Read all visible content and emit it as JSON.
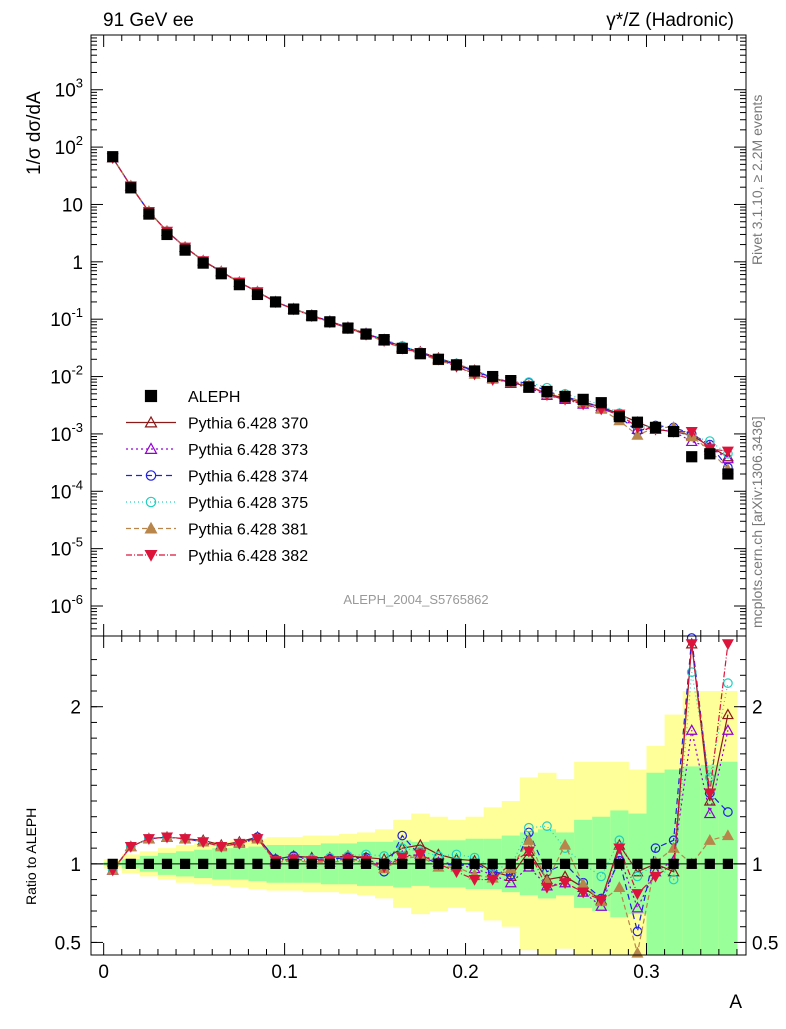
{
  "header": {
    "left": "91 GeV ee",
    "right": "γ*/Z (Hadronic)"
  },
  "side_text": {
    "top": "Rivet 3.1.10, ≥ 2.2M events",
    "bottom": "mcplots.cern.ch [arXiv:1306.3436]"
  },
  "analysis_label": "ALEPH_2004_S5765862",
  "colors": {
    "ALEPH": "#000000",
    "p370": "#8b1a1a",
    "p373": "#9400d3",
    "p374": "#2020e0",
    "p375": "#20d0c0",
    "p381": "#b8864b",
    "p382": "#dc143c",
    "band_yellow": "#ffff99",
    "band_green": "#99ff99"
  },
  "chart_data": [
    {
      "type": "scatter",
      "ylabel": "1/σ  dσ/dA",
      "yscale": "log",
      "ylim": [
        3e-07,
        9000
      ],
      "xlim": [
        -0.007,
        0.355
      ],
      "y_tick_labels": [
        "10^-6",
        "10^-5",
        "10^-4",
        "10^-3",
        "10^-2",
        "10^-1",
        "1",
        "10",
        "10^2",
        "10^3"
      ],
      "legend_position": "lower-left",
      "x": [
        0.005,
        0.015,
        0.025,
        0.035,
        0.045,
        0.055,
        0.065,
        0.075,
        0.085,
        0.095,
        0.105,
        0.115,
        0.125,
        0.135,
        0.145,
        0.155,
        0.165,
        0.175,
        0.185,
        0.195,
        0.205,
        0.215,
        0.225,
        0.235,
        0.245,
        0.255,
        0.265,
        0.275,
        0.285,
        0.295,
        0.305,
        0.315,
        0.325,
        0.335,
        0.345
      ],
      "data_series": {
        "name": "ALEPH",
        "values": [
          68,
          19.5,
          6.8,
          3.0,
          1.6,
          0.95,
          0.62,
          0.4,
          0.27,
          0.2,
          0.15,
          0.115,
          0.09,
          0.07,
          0.055,
          0.044,
          0.031,
          0.025,
          0.02,
          0.016,
          0.0125,
          0.01,
          0.0085,
          0.0065,
          0.0055,
          0.0045,
          0.004,
          0.0035,
          0.002,
          0.0016,
          0.0013,
          0.0011,
          0.0004,
          0.00045,
          0.0002
        ]
      },
      "series": [
        {
          "name": "Pythia 6.428 370",
          "marker": "triangle-up-open",
          "dash": "",
          "values": [
            65,
            21,
            7.5,
            3.4,
            1.8,
            1.05,
            0.68,
            0.44,
            0.3,
            0.2,
            0.152,
            0.117,
            0.092,
            0.072,
            0.056,
            0.044,
            0.033,
            0.027,
            0.021,
            0.0165,
            0.0128,
            0.0095,
            0.0078,
            0.0068,
            0.005,
            0.0042,
            0.0035,
            0.003,
            0.0022,
            0.0016,
            0.0012,
            0.0011,
            0.00095,
            0.0006,
            0.0004
          ]
        },
        {
          "name": "Pythia 6.428 373",
          "marker": "triangle-up-open",
          "dash": "2,3",
          "values": [
            65,
            21,
            7.5,
            3.4,
            1.8,
            1.04,
            0.67,
            0.44,
            0.3,
            0.2,
            0.151,
            0.116,
            0.091,
            0.071,
            0.056,
            0.043,
            0.032,
            0.026,
            0.02,
            0.016,
            0.012,
            0.0093,
            0.0076,
            0.0064,
            0.0047,
            0.004,
            0.0033,
            0.0028,
            0.0021,
            0.0012,
            0.0012,
            0.0011,
            0.00074,
            0.00058,
            0.00037
          ]
        },
        {
          "name": "Pythia 6.428 374",
          "marker": "circle-open",
          "dash": "6,4",
          "values": [
            65,
            21,
            7.5,
            3.4,
            1.8,
            1.04,
            0.67,
            0.44,
            0.3,
            0.2,
            0.152,
            0.116,
            0.091,
            0.071,
            0.056,
            0.042,
            0.034,
            0.026,
            0.02,
            0.016,
            0.0125,
            0.0095,
            0.008,
            0.0078,
            0.0055,
            0.0045,
            0.0036,
            0.003,
            0.002,
            0.0011,
            0.0014,
            0.0013,
            0.001,
            0.00065,
            0.00026
          ]
        },
        {
          "name": "Pythia 6.428 375",
          "marker": "circle-open",
          "dash": "1,3",
          "values": [
            65,
            21,
            7.5,
            3.4,
            1.8,
            1.04,
            0.67,
            0.44,
            0.3,
            0.2,
            0.151,
            0.116,
            0.092,
            0.072,
            0.057,
            0.045,
            0.034,
            0.027,
            0.021,
            0.017,
            0.013,
            0.0096,
            0.0082,
            0.008,
            0.0064,
            0.005,
            0.004,
            0.0032,
            0.0023,
            0.0014,
            0.0013,
            0.0011,
            0.0009,
            0.00075,
            0.00045
          ]
        },
        {
          "name": "Pythia 6.428 381",
          "marker": "triangle-up-filled",
          "dash": "5,3",
          "values": [
            65,
            21,
            7.5,
            3.4,
            1.8,
            1.04,
            0.67,
            0.44,
            0.3,
            0.2,
            0.15,
            0.115,
            0.09,
            0.07,
            0.054,
            0.041,
            0.031,
            0.025,
            0.019,
            0.0155,
            0.011,
            0.009,
            0.008,
            0.007,
            0.005,
            0.0048,
            0.0035,
            0.0027,
            0.0017,
            0.00095,
            0.0013,
            0.0013,
            0.0009,
            0.00052,
            0.00024
          ]
        },
        {
          "name": "Pythia 6.428 382",
          "marker": "triangle-down-filled",
          "dash": "6,2,1,2",
          "values": [
            65,
            21,
            7.5,
            3.4,
            1.8,
            1.04,
            0.67,
            0.44,
            0.3,
            0.2,
            0.15,
            0.114,
            0.089,
            0.07,
            0.054,
            0.042,
            0.031,
            0.026,
            0.02,
            0.015,
            0.011,
            0.0088,
            0.0082,
            0.007,
            0.0048,
            0.004,
            0.0033,
            0.0027,
            0.0022,
            0.0013,
            0.0012,
            0.0011,
            0.0011,
            0.00055,
            0.0005
          ]
        }
      ]
    },
    {
      "type": "scatter",
      "xlabel": "A",
      "ylabel": "Ratio to ALEPH",
      "xlim": [
        -0.007,
        0.355
      ],
      "ylim": [
        0.42,
        2.45
      ],
      "x_ticks": [
        0,
        0.1,
        0.2,
        0.3
      ],
      "x_tick_labels": [
        "0",
        "0.1",
        "0.2",
        "0.3"
      ],
      "y_ticks": [
        0.5,
        1,
        2
      ],
      "y_tick_labels": [
        "0.5",
        "1",
        "2"
      ],
      "x": [
        0.005,
        0.015,
        0.025,
        0.035,
        0.045,
        0.055,
        0.065,
        0.075,
        0.085,
        0.095,
        0.105,
        0.115,
        0.125,
        0.135,
        0.145,
        0.155,
        0.165,
        0.175,
        0.185,
        0.195,
        0.205,
        0.215,
        0.225,
        0.235,
        0.245,
        0.255,
        0.265,
        0.275,
        0.285,
        0.295,
        0.305,
        0.315,
        0.325,
        0.335,
        0.345
      ],
      "bands": {
        "yellow_low": [
          0.97,
          0.94,
          0.92,
          0.9,
          0.88,
          0.87,
          0.86,
          0.85,
          0.84,
          0.83,
          0.83,
          0.82,
          0.82,
          0.81,
          0.8,
          0.78,
          0.72,
          0.68,
          0.7,
          0.72,
          0.7,
          0.64,
          0.6,
          0.45,
          0.42,
          0.46,
          0.35,
          0.35,
          0.35,
          0.4,
          0.35,
          0.35,
          0.35,
          0.35,
          0.35
        ],
        "yellow_high": [
          1.03,
          1.06,
          1.08,
          1.1,
          1.12,
          1.13,
          1.14,
          1.15,
          1.16,
          1.17,
          1.17,
          1.18,
          1.18,
          1.19,
          1.2,
          1.22,
          1.28,
          1.32,
          1.3,
          1.28,
          1.3,
          1.36,
          1.4,
          1.55,
          1.58,
          1.54,
          1.65,
          1.65,
          1.65,
          1.6,
          1.75,
          1.95,
          2.1,
          2.1,
          2.1
        ],
        "green_low": [
          0.99,
          0.97,
          0.95,
          0.93,
          0.92,
          0.91,
          0.9,
          0.9,
          0.89,
          0.88,
          0.88,
          0.88,
          0.87,
          0.87,
          0.86,
          0.86,
          0.85,
          0.86,
          0.85,
          0.85,
          0.84,
          0.84,
          0.82,
          0.8,
          0.78,
          0.8,
          0.72,
          0.7,
          0.66,
          0.68,
          0.42,
          0.4,
          0.4,
          0.38,
          0.36
        ],
        "green_high": [
          1.01,
          1.03,
          1.05,
          1.07,
          1.08,
          1.09,
          1.1,
          1.1,
          1.11,
          1.12,
          1.12,
          1.12,
          1.13,
          1.13,
          1.14,
          1.14,
          1.15,
          1.14,
          1.15,
          1.15,
          1.16,
          1.16,
          1.18,
          1.2,
          1.22,
          1.2,
          1.28,
          1.3,
          1.34,
          1.32,
          1.58,
          1.6,
          1.62,
          1.63,
          1.65
        ]
      },
      "series": [
        {
          "name": "Pythia 6.428 370",
          "values": [
            0.96,
            1.11,
            1.16,
            1.17,
            1.16,
            1.15,
            1.12,
            1.14,
            1.17,
            1.03,
            1.05,
            1.04,
            1.04,
            1.05,
            1.04,
            1.03,
            1.1,
            1.12,
            1.06,
            1.03,
            1.02,
            0.95,
            0.92,
            1.08,
            0.9,
            0.92,
            0.85,
            0.77,
            1.12,
            0.95,
            1.0,
            0.95,
            2.4,
            1.4,
            1.95
          ]
        },
        {
          "name": "Pythia 6.428 373",
          "values": [
            0.96,
            1.11,
            1.16,
            1.17,
            1.16,
            1.14,
            1.11,
            1.13,
            1.16,
            1.02,
            1.04,
            1.03,
            1.03,
            1.04,
            1.03,
            0.99,
            1.05,
            1.06,
            1.01,
            1.0,
            0.97,
            0.93,
            0.88,
            0.98,
            0.86,
            0.88,
            0.82,
            0.73,
            1.05,
            0.72,
            0.95,
            1.02,
            1.85,
            1.32,
            1.85
          ]
        },
        {
          "name": "Pythia 6.428 374",
          "values": [
            0.96,
            1.11,
            1.16,
            1.17,
            1.16,
            1.14,
            1.11,
            1.13,
            1.17,
            1.03,
            1.05,
            1.03,
            1.03,
            1.04,
            1.04,
            0.95,
            1.18,
            1.05,
            1.0,
            0.99,
            1.0,
            0.95,
            0.93,
            1.2,
            0.95,
            1.0,
            0.88,
            0.78,
            1.02,
            0.57,
            1.1,
            1.15,
            2.45,
            1.45,
            1.33
          ]
        },
        {
          "name": "Pythia 6.428 375",
          "values": [
            0.96,
            1.11,
            1.16,
            1.17,
            1.16,
            1.14,
            1.11,
            1.13,
            1.16,
            1.02,
            1.04,
            1.03,
            1.04,
            1.05,
            1.06,
            1.05,
            1.1,
            1.08,
            1.05,
            1.06,
            1.04,
            0.98,
            0.98,
            1.23,
            1.24,
            1.1,
            1.0,
            0.92,
            1.15,
            0.92,
            1.0,
            0.9,
            2.22,
            1.55,
            2.15
          ]
        },
        {
          "name": "Pythia 6.428 381",
          "values": [
            0.96,
            1.11,
            1.16,
            1.17,
            1.16,
            1.14,
            1.11,
            1.13,
            1.16,
            1.01,
            1.02,
            1.01,
            1.01,
            1.02,
            1.01,
            0.97,
            1.03,
            1.05,
            0.98,
            0.98,
            0.93,
            0.91,
            0.97,
            1.15,
            0.89,
            1.12,
            0.87,
            0.76,
            0.85,
            0.43,
            1.01,
            1.1,
            1.0,
            1.15,
            1.18
          ]
        },
        {
          "name": "Pythia 6.428 382",
          "values": [
            0.96,
            1.11,
            1.16,
            1.17,
            1.16,
            1.14,
            1.11,
            1.13,
            1.16,
            1.02,
            1.03,
            1.02,
            1.02,
            1.03,
            1.02,
            0.98,
            1.04,
            1.06,
            1.0,
            0.95,
            0.9,
            0.9,
            1.0,
            1.08,
            0.85,
            0.88,
            0.82,
            0.77,
            1.1,
            0.81,
            0.92,
            1.0,
            2.4,
            1.45,
            2.4
          ]
        }
      ]
    }
  ]
}
